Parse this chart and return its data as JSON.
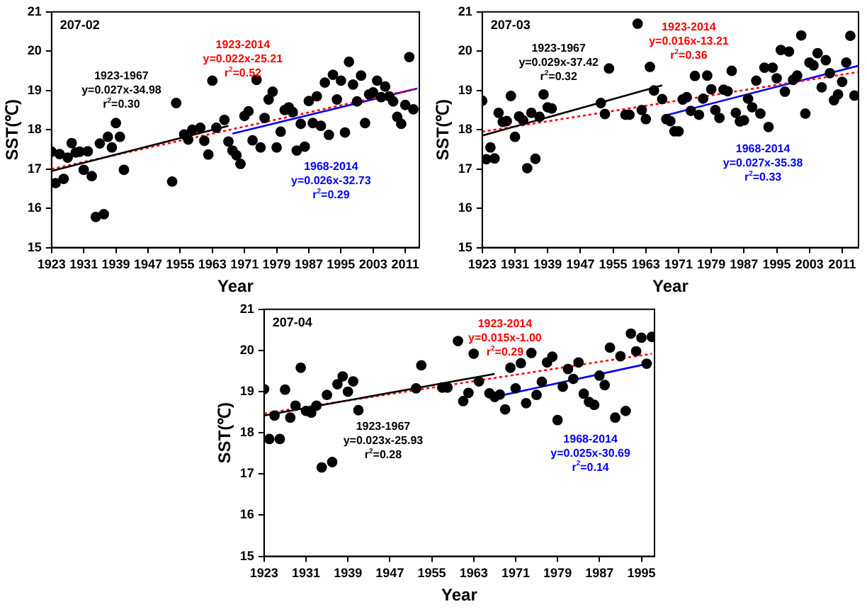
{
  "chart_data": [
    {
      "type": "scatter",
      "xlabel": "Year",
      "ylabel": "SST(℃)",
      "xlim": [
        1923,
        2014.5
      ],
      "xticks": [
        1923,
        1931,
        1939,
        1947,
        1955,
        1963,
        1971,
        1979,
        1987,
        1995,
        2003,
        2011
      ],
      "ylim": [
        15,
        21
      ],
      "yticks": [
        15,
        16,
        17,
        18,
        19,
        20,
        21
      ],
      "marker": "circle",
      "annotations": [
        "207-02",
        "1923-1967\ny=0.027x-34.98\nr$^{2}$=0.30",
        "1923-2014\ny=0.022x-25.21\nr$^{2}$=0.52",
        "1968-2014\ny=0.026x-32.73\nr$^{2}$=0.29"
      ],
      "series": [
        {
          "color": "#000000",
          "x": [
            1923,
            1924,
            1925,
            1926,
            1927,
            1928,
            1929,
            1930,
            1931,
            1932,
            1933,
            1934,
            1935,
            1936,
            1937,
            1938,
            1939,
            1940,
            1941,
            1953,
            1954,
            1956,
            1957,
            1958,
            1960,
            1961,
            1962,
            1963,
            1964,
            1966,
            1967,
            1968,
            1969,
            1970,
            1971,
            1972,
            1973,
            1974,
            1975,
            1976,
            1977,
            1978,
            1979,
            1980,
            1981,
            1982,
            1983,
            1984,
            1985,
            1986,
            1987,
            1988,
            1989,
            1990,
            1991,
            1992,
            1993,
            1994,
            1995,
            1996,
            1997,
            1998,
            1999,
            2000,
            2001,
            2002,
            2003,
            2004,
            2005,
            2006,
            2007,
            2008,
            2009,
            2010,
            2011,
            2012,
            2013
          ],
          "values": [
            17.44,
            16.64,
            17.38,
            16.75,
            17.29,
            17.66,
            17.42,
            17.44,
            16.98,
            17.45,
            16.82,
            15.78,
            17.65,
            15.85,
            17.82,
            17.55,
            18.17,
            17.82,
            16.98,
            16.68,
            18.68,
            17.88,
            17.75,
            18.0,
            18.05,
            17.72,
            17.37,
            19.25,
            18.05,
            18.25,
            17.7,
            17.47,
            17.35,
            17.13,
            18.35,
            18.47,
            17.73,
            19.27,
            17.55,
            18.3,
            18.77,
            18.97,
            17.55,
            17.95,
            18.5,
            18.57,
            18.45,
            17.47,
            18.15,
            17.57,
            18.73,
            18.17,
            18.85,
            18.1,
            19.2,
            17.87,
            19.4,
            18.77,
            19.25,
            17.93,
            19.73,
            19.15,
            18.72,
            19.38,
            18.17,
            18.9,
            18.95,
            19.25,
            18.83,
            19.1,
            18.85,
            18.72,
            18.33,
            18.15,
            18.63,
            19.85,
            18.52
          ]
        },
        {
          "type": "line",
          "color": "#000000",
          "line_style": "solid",
          "marker": "none",
          "x": [
            1923,
            1967
          ],
          "values": [
            16.95,
            18.1
          ]
        },
        {
          "type": "line",
          "color": "#ff0000",
          "line_style": "dotted",
          "marker": "none",
          "x": [
            1923,
            2014
          ],
          "values": [
            17.0,
            19.05
          ]
        },
        {
          "type": "line",
          "color": "#0000ff",
          "line_style": "solid",
          "marker": "none",
          "x": [
            1968,
            2014
          ],
          "values": [
            17.9,
            19.05
          ]
        }
      ]
    },
    {
      "type": "scatter",
      "xlabel": "Year",
      "ylabel": "SST(℃)",
      "xlim": [
        1923,
        2015
      ],
      "xticks": [
        1923,
        1931,
        1939,
        1947,
        1955,
        1963,
        1971,
        1979,
        1987,
        1995,
        2003,
        2011
      ],
      "ylim": [
        15,
        21
      ],
      "yticks": [
        15,
        16,
        17,
        18,
        19,
        20,
        21
      ],
      "marker": "circle",
      "annotations": [
        "207-03",
        "1923-1967\ny=0.029x-37.42\nr$^{2}$=0.32",
        "1923-2014\ny=0.016x-13.21\nr$^{2}$=0.36",
        "1968-2014\ny=0.027x-35.38\nr$^{2}$=0.33"
      ],
      "series": [
        {
          "color": "#000000",
          "x": [
            1923,
            1924,
            1925,
            1926,
            1927,
            1928,
            1929,
            1930,
            1931,
            1932,
            1933,
            1934,
            1935,
            1936,
            1937,
            1938,
            1939,
            1940,
            1952,
            1953,
            1954,
            1958,
            1959,
            1961,
            1962,
            1963,
            1964,
            1965,
            1967,
            1968,
            1969,
            1970,
            1971,
            1972,
            1973,
            1974,
            1975,
            1976,
            1977,
            1978,
            1979,
            1980,
            1981,
            1982,
            1983,
            1984,
            1985,
            1986,
            1987,
            1988,
            1989,
            1990,
            1991,
            1992,
            1993,
            1994,
            1995,
            1996,
            1997,
            1998,
            1999,
            2000,
            2001,
            2002,
            2003,
            2004,
            2005,
            2006,
            2007,
            2008,
            2009,
            2010,
            2011,
            2012,
            2013,
            2014
          ],
          "values": [
            18.74,
            17.25,
            17.55,
            17.27,
            18.43,
            18.2,
            18.22,
            18.86,
            17.82,
            18.34,
            18.24,
            17.02,
            18.43,
            17.26,
            18.33,
            18.9,
            18.57,
            18.54,
            18.68,
            18.4,
            19.56,
            18.38,
            18.38,
            20.7,
            18.5,
            18.27,
            19.6,
            19.0,
            18.78,
            18.27,
            18.22,
            17.96,
            17.96,
            18.77,
            18.83,
            18.48,
            19.37,
            18.38,
            18.79,
            19.38,
            19.03,
            18.5,
            18.3,
            19.02,
            18.98,
            19.5,
            18.43,
            18.21,
            18.24,
            18.79,
            18.57,
            19.25,
            18.41,
            19.58,
            18.07,
            19.58,
            19.31,
            20.03,
            18.97,
            19.99,
            19.27,
            19.38,
            20.4,
            18.41,
            19.71,
            19.64,
            19.95,
            19.08,
            19.77,
            19.44,
            18.75,
            18.9,
            19.22,
            19.71,
            20.39,
            18.87
          ]
        },
        {
          "type": "line",
          "color": "#000000",
          "line_style": "solid",
          "marker": "none",
          "x": [
            1923,
            1967
          ],
          "values": [
            17.85,
            19.13
          ]
        },
        {
          "type": "line",
          "color": "#ff0000",
          "line_style": "dotted",
          "marker": "none",
          "x": [
            1923,
            2015
          ],
          "values": [
            17.95,
            19.47
          ]
        },
        {
          "type": "line",
          "color": "#0000ff",
          "line_style": "solid",
          "marker": "none",
          "x": [
            1968,
            2015
          ],
          "values": [
            18.37,
            19.63
          ]
        }
      ]
    },
    {
      "type": "scatter",
      "xlabel": "Year",
      "ylabel": "SST(℃)",
      "xlim": [
        1923,
        1997.5
      ],
      "xticks": [
        1923,
        1931,
        1939,
        1947,
        1955,
        1963,
        1971,
        1979,
        1987,
        1995
      ],
      "ylim": [
        15,
        21
      ],
      "yticks": [
        15,
        16,
        17,
        18,
        19,
        20,
        21
      ],
      "marker": "circle",
      "annotations": [
        "207-04",
        "1923-1967\ny=0.023x-25.93\nr$^{2}$=0.28",
        "1923-2014\ny=0.015x-1.00\nr$^{2}$=0.29",
        "1968-2014\ny=0.025x-30.69\nr$^{2}$=0.14"
      ],
      "series": [
        {
          "color": "#000000",
          "x": [
            1923,
            1924,
            1925,
            1926,
            1927,
            1928,
            1929,
            1930,
            1931,
            1932,
            1933,
            1934,
            1935,
            1936,
            1937,
            1938,
            1939,
            1940,
            1941,
            1952,
            1953,
            1957,
            1958,
            1960,
            1961,
            1962,
            1963,
            1964,
            1966,
            1967,
            1968,
            1969,
            1970,
            1971,
            1972,
            1973,
            1974,
            1975,
            1976,
            1977,
            1978,
            1979,
            1980,
            1981,
            1982,
            1983,
            1984,
            1985,
            1986,
            1987,
            1988,
            1989,
            1990,
            1991,
            1992,
            1993,
            1994,
            1995,
            1996,
            1997
          ],
          "values": [
            19.06,
            17.85,
            18.42,
            17.85,
            19.05,
            18.37,
            18.66,
            19.58,
            18.53,
            18.49,
            18.66,
            17.16,
            18.92,
            17.29,
            19.18,
            19.37,
            19.0,
            19.25,
            18.55,
            19.08,
            19.64,
            19.1,
            19.1,
            20.23,
            18.77,
            18.97,
            19.92,
            19.25,
            18.96,
            18.87,
            18.93,
            18.57,
            19.58,
            19.08,
            19.69,
            18.72,
            19.94,
            18.92,
            19.24,
            19.71,
            19.85,
            18.31,
            19.12,
            19.55,
            19.31,
            19.71,
            18.95,
            18.75,
            18.68,
            19.39,
            19.16,
            20.07,
            18.37,
            19.86,
            18.53,
            20.41,
            19.98,
            20.31,
            19.68,
            20.33
          ]
        },
        {
          "type": "line",
          "color": "#000000",
          "line_style": "solid",
          "marker": "none",
          "x": [
            1923,
            1967
          ],
          "values": [
            18.42,
            19.43
          ]
        },
        {
          "type": "line",
          "color": "#ff0000",
          "line_style": "dotted",
          "marker": "none",
          "x": [
            1923,
            1997
          ],
          "values": [
            18.47,
            19.92
          ]
        },
        {
          "type": "line",
          "color": "#0000ff",
          "line_style": "solid",
          "marker": "none",
          "x": [
            1968,
            1997
          ],
          "values": [
            18.9,
            19.7
          ]
        }
      ]
    }
  ]
}
